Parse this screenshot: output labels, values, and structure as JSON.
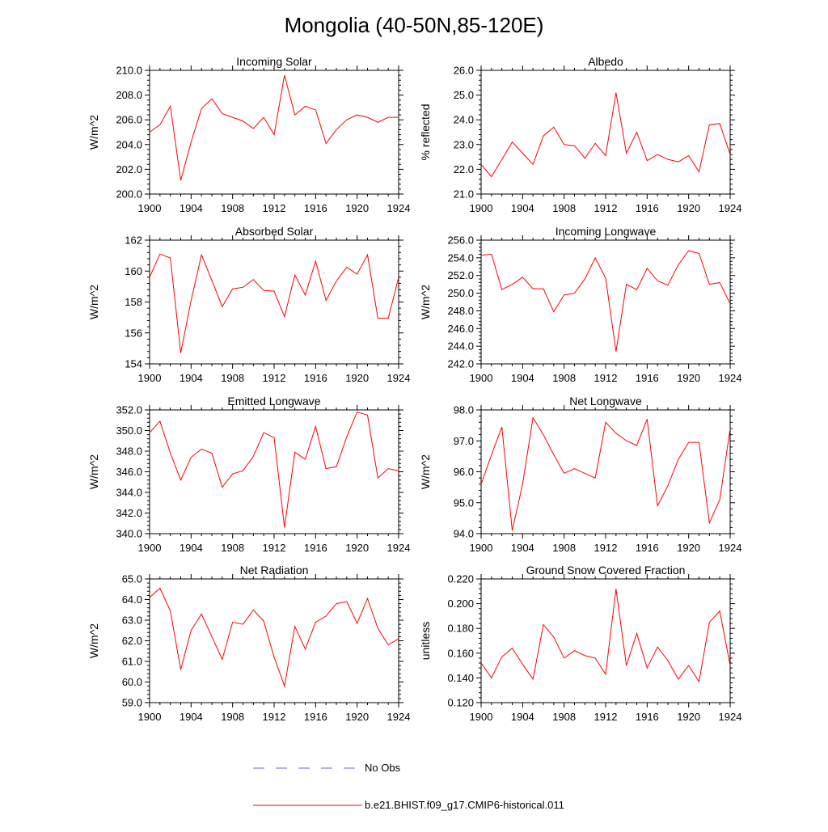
{
  "figure": {
    "title": "Mongolia (40-50N,85-120E)"
  },
  "legend": {
    "obs_label": "No Obs",
    "obs_color": "#6b6bb8",
    "model_label": "b.e21.BHIST.f09_g17.CMIP6-historical.011",
    "model_color": "#ff0000"
  },
  "chart_data": [
    {
      "type": "line",
      "title": "Incoming Solar",
      "ylabel": "W/m^2",
      "xlim": [
        1900,
        1924
      ],
      "ylim": [
        200,
        210
      ],
      "yticks": [
        "200.0",
        "202.0",
        "204.0",
        "206.0",
        "208.0",
        "210.0"
      ],
      "xticks": [
        "1900",
        "1904",
        "1908",
        "1912",
        "1916",
        "1920",
        "1924"
      ],
      "series": [
        {
          "x": [
            1900,
            1901,
            1902,
            1903,
            1904,
            1905,
            1906,
            1907,
            1908,
            1909,
            1910,
            1911,
            1912,
            1913,
            1914,
            1915,
            1916,
            1917,
            1918,
            1919,
            1920,
            1921,
            1922,
            1923,
            1924
          ],
          "values": [
            205.0,
            205.6,
            207.1,
            201.1,
            204.2,
            206.9,
            207.7,
            206.5,
            206.2,
            205.9,
            205.3,
            206.2,
            204.8,
            209.6,
            206.4,
            207.1,
            206.8,
            204.1,
            205.2,
            206.0,
            206.4,
            206.2,
            205.8,
            206.2,
            206.2
          ]
        }
      ]
    },
    {
      "type": "line",
      "title": "Albedo",
      "ylabel": "% reflected",
      "xlim": [
        1900,
        1924
      ],
      "ylim": [
        21,
        26
      ],
      "yticks": [
        "21.0",
        "22.0",
        "23.0",
        "24.0",
        "25.0",
        "26.0"
      ],
      "xticks": [
        "1900",
        "1904",
        "1908",
        "1912",
        "1916",
        "1920",
        "1924"
      ],
      "series": [
        {
          "x": [
            1900,
            1901,
            1902,
            1903,
            1904,
            1905,
            1906,
            1907,
            1908,
            1909,
            1910,
            1911,
            1912,
            1913,
            1914,
            1915,
            1916,
            1917,
            1918,
            1919,
            1920,
            1921,
            1922,
            1923,
            1924
          ],
          "values": [
            22.2,
            21.7,
            22.4,
            23.1,
            22.65,
            22.2,
            23.35,
            23.7,
            23.0,
            22.95,
            22.45,
            23.05,
            22.55,
            25.1,
            22.65,
            23.5,
            22.35,
            22.6,
            22.4,
            22.3,
            22.55,
            21.9,
            23.8,
            23.85,
            22.6
          ]
        }
      ]
    },
    {
      "type": "line",
      "title": "Absorbed Solar",
      "ylabel": "W/m^2",
      "xlim": [
        1900,
        1924
      ],
      "ylim": [
        154,
        162
      ],
      "yticks": [
        "154",
        "156",
        "158",
        "160",
        "162"
      ],
      "xticks": [
        "1900",
        "1904",
        "1908",
        "1912",
        "1916",
        "1920",
        "1924"
      ],
      "series": [
        {
          "x": [
            1900,
            1901,
            1902,
            1903,
            1904,
            1905,
            1906,
            1907,
            1908,
            1909,
            1910,
            1911,
            1912,
            1913,
            1914,
            1915,
            1916,
            1917,
            1918,
            1919,
            1920,
            1921,
            1922,
            1923,
            1924
          ],
          "values": [
            159.6,
            161.1,
            160.85,
            154.7,
            158.1,
            161.05,
            159.4,
            157.7,
            158.85,
            158.95,
            159.45,
            158.75,
            158.7,
            157.05,
            159.75,
            158.45,
            160.65,
            158.1,
            159.35,
            160.25,
            159.8,
            161.05,
            156.95,
            156.95,
            159.6
          ]
        }
      ]
    },
    {
      "type": "line",
      "title": "Incoming Longwave",
      "ylabel": "W/m^2",
      "xlim": [
        1900,
        1924
      ],
      "ylim": [
        242,
        256
      ],
      "yticks": [
        "242.0",
        "244.0",
        "246.0",
        "248.0",
        "250.0",
        "252.0",
        "254.0",
        "256.0"
      ],
      "xticks": [
        "1900",
        "1904",
        "1908",
        "1912",
        "1916",
        "1920",
        "1924"
      ],
      "series": [
        {
          "x": [
            1900,
            1901,
            1902,
            1903,
            1904,
            1905,
            1906,
            1907,
            1908,
            1909,
            1910,
            1911,
            1912,
            1913,
            1914,
            1915,
            1916,
            1917,
            1918,
            1919,
            1920,
            1921,
            1922,
            1923,
            1924
          ],
          "values": [
            254.3,
            254.4,
            250.4,
            251.0,
            251.8,
            250.5,
            250.5,
            247.9,
            249.8,
            250.0,
            251.6,
            254.0,
            251.7,
            243.4,
            251.0,
            250.4,
            252.8,
            251.4,
            250.9,
            253.2,
            254.8,
            254.5,
            251.0,
            251.2,
            248.8
          ]
        }
      ]
    },
    {
      "type": "line",
      "title": "Emitted Longwave",
      "ylabel": "W/m^2",
      "xlim": [
        1900,
        1924
      ],
      "ylim": [
        340,
        352
      ],
      "yticks": [
        "340.0",
        "342.0",
        "344.0",
        "346.0",
        "348.0",
        "350.0",
        "352.0"
      ],
      "xticks": [
        "1900",
        "1904",
        "1908",
        "1912",
        "1916",
        "1920",
        "1924"
      ],
      "series": [
        {
          "x": [
            1900,
            1901,
            1902,
            1903,
            1904,
            1905,
            1906,
            1907,
            1908,
            1909,
            1910,
            1911,
            1912,
            1913,
            1914,
            1915,
            1916,
            1917,
            1918,
            1919,
            1920,
            1921,
            1922,
            1923,
            1924
          ],
          "values": [
            349.8,
            350.9,
            347.8,
            345.2,
            347.4,
            348.2,
            347.8,
            344.5,
            345.8,
            346.1,
            347.5,
            349.8,
            349.3,
            340.6,
            347.9,
            347.2,
            350.4,
            346.3,
            346.5,
            349.4,
            351.8,
            351.5,
            345.4,
            346.3,
            346.1
          ]
        }
      ]
    },
    {
      "type": "line",
      "title": "Net Longwave",
      "ylabel": "W/m^2",
      "xlim": [
        1900,
        1924
      ],
      "ylim": [
        94,
        98
      ],
      "yticks": [
        "94.0",
        "95.0",
        "96.0",
        "97.0",
        "98.0"
      ],
      "xticks": [
        "1900",
        "1904",
        "1908",
        "1912",
        "1916",
        "1920",
        "1924"
      ],
      "series": [
        {
          "x": [
            1900,
            1901,
            1902,
            1903,
            1904,
            1905,
            1906,
            1907,
            1908,
            1909,
            1910,
            1911,
            1912,
            1913,
            1914,
            1915,
            1916,
            1917,
            1918,
            1919,
            1920,
            1921,
            1922,
            1923,
            1924
          ],
          "values": [
            95.6,
            96.55,
            97.45,
            94.1,
            95.6,
            97.75,
            97.2,
            96.55,
            95.95,
            96.1,
            95.95,
            95.8,
            97.6,
            97.25,
            97.0,
            96.85,
            97.7,
            94.9,
            95.55,
            96.4,
            96.95,
            96.95,
            94.35,
            95.1,
            97.4
          ]
        }
      ]
    },
    {
      "type": "line",
      "title": "Net Radiation",
      "ylabel": "W/m^2",
      "xlim": [
        1900,
        1924
      ],
      "ylim": [
        59,
        65
      ],
      "yticks": [
        "59.0",
        "60.0",
        "61.0",
        "62.0",
        "63.0",
        "64.0",
        "65.0"
      ],
      "xticks": [
        "1900",
        "1904",
        "1908",
        "1912",
        "1916",
        "1920",
        "1924"
      ],
      "series": [
        {
          "x": [
            1900,
            1901,
            1902,
            1903,
            1904,
            1905,
            1906,
            1907,
            1908,
            1909,
            1910,
            1911,
            1912,
            1913,
            1914,
            1915,
            1916,
            1917,
            1918,
            1919,
            1920,
            1921,
            1922,
            1923,
            1924
          ],
          "values": [
            64.1,
            64.55,
            63.45,
            60.6,
            62.5,
            63.3,
            62.2,
            61.1,
            62.9,
            62.8,
            63.5,
            62.95,
            61.2,
            59.8,
            62.7,
            61.6,
            62.9,
            63.2,
            63.8,
            63.9,
            62.85,
            64.05,
            62.6,
            61.8,
            62.1
          ]
        }
      ]
    },
    {
      "type": "line",
      "title": "Ground Snow Covered Fraction",
      "ylabel": "unitless",
      "xlim": [
        1900,
        1924
      ],
      "ylim": [
        0.12,
        0.22
      ],
      "yticks": [
        "0.120",
        "0.140",
        "0.160",
        "0.180",
        "0.200",
        "0.220"
      ],
      "xticks": [
        "1900",
        "1904",
        "1908",
        "1912",
        "1916",
        "1920",
        "1924"
      ],
      "series": [
        {
          "x": [
            1900,
            1901,
            1902,
            1903,
            1904,
            1905,
            1906,
            1907,
            1908,
            1909,
            1910,
            1911,
            1912,
            1913,
            1914,
            1915,
            1916,
            1917,
            1918,
            1919,
            1920,
            1921,
            1922,
            1923,
            1924
          ],
          "values": [
            0.152,
            0.14,
            0.157,
            0.164,
            0.151,
            0.139,
            0.183,
            0.173,
            0.156,
            0.162,
            0.158,
            0.156,
            0.143,
            0.212,
            0.15,
            0.176,
            0.148,
            0.165,
            0.154,
            0.139,
            0.15,
            0.137,
            0.185,
            0.194,
            0.15
          ]
        }
      ]
    }
  ]
}
